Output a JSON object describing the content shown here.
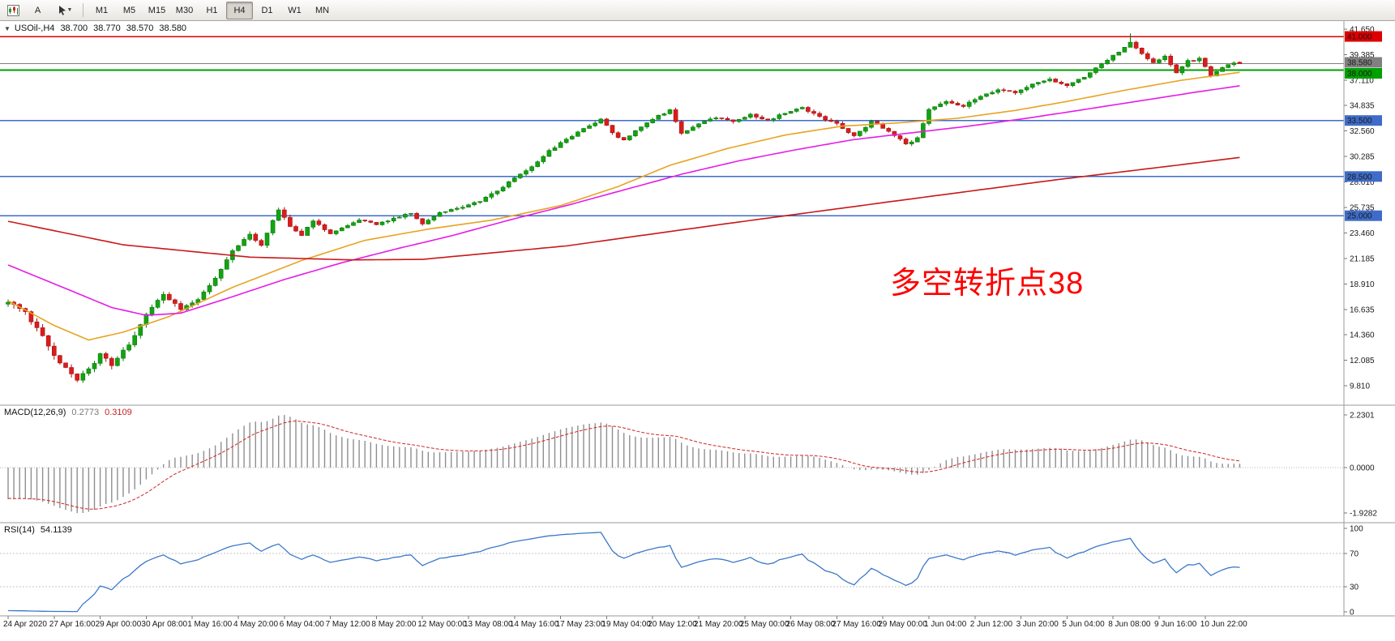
{
  "toolbar": {
    "a_label": "A",
    "timeframes": [
      "M1",
      "M5",
      "M15",
      "M30",
      "H1",
      "H4",
      "D1",
      "W1",
      "MN"
    ],
    "active_timeframe": "H4"
  },
  "chart": {
    "title": {
      "symbol": "USOil-,H4",
      "open": "38.700",
      "high": "38.770",
      "low": "38.570",
      "close": "38.580"
    },
    "annotation": {
      "text": "多空转折点38",
      "color": "#FF0000"
    }
  },
  "macd": {
    "name": "MACD(12,26,9)",
    "value_main": "0.2773",
    "value_signal": "0.3109",
    "scale": [
      "2.2301",
      "0.0000",
      "-1.9282"
    ]
  },
  "rsi": {
    "name": "RSI(14)",
    "value": "54.1139",
    "scale": [
      "100",
      "70",
      "30",
      "0"
    ]
  },
  "chart_data": {
    "type": "candlestick",
    "symbol": "USOil-",
    "period": "H4",
    "bar_count": 215,
    "last_bar_ohlc": [
      38.7,
      38.77,
      38.57,
      38.58
    ],
    "y_axis": {
      "top_price": 42.45,
      "bottom_price": 8.08,
      "ticks": [
        41.65,
        39.385,
        37.11,
        34.835,
        32.56,
        30.285,
        28.01,
        25.735,
        23.46,
        21.185,
        18.91,
        16.635,
        14.36,
        12.085,
        9.81
      ]
    },
    "x_axis": {
      "bars_per_label": 8,
      "labels": [
        "24 Apr 2020",
        "27 Apr 16:00",
        "29 Apr 00:00",
        "30 Apr 08:00",
        "1 May 16:00",
        "4 May 20:00",
        "6 May 04:00",
        "7 May 12:00",
        "8 May 20:00",
        "12 May 00:00",
        "13 May 08:00",
        "14 May 16:00",
        "17 May 23:00",
        "19 May 04:00",
        "20 May 12:00",
        "21 May 20:00",
        "25 May 00:00",
        "26 May 08:00",
        "27 May 16:00",
        "29 May 00:00",
        "1 Jun 04:00",
        "2 Jun 12:00",
        "3 Jun 20:00",
        "5 Jun 04:00",
        "8 Jun 08:00",
        "9 Jun 16:00",
        "10 Jun 22:00"
      ]
    },
    "horizontal_lines": [
      {
        "price": 41.0,
        "label": "41.000",
        "color": "#DD0000",
        "width": 1.5,
        "name": "resistance-line-41"
      },
      {
        "price": 38.58,
        "label": "38.580",
        "color": "#808080",
        "width": 1,
        "name": "bid-price-line"
      },
      {
        "price": 38.0,
        "label": "38.000",
        "color": "#00A000",
        "width": 2,
        "name": "pivot-line-38"
      },
      {
        "price": 33.5,
        "label": "33.500",
        "color": "#3E6CC8",
        "width": 1.5,
        "name": "level-line-33-5"
      },
      {
        "price": 28.5,
        "label": "28.500",
        "color": "#3E6CC8",
        "width": 1.5,
        "name": "level-line-28-5"
      },
      {
        "price": 25.0,
        "label": "25.000",
        "color": "#3E6CC8",
        "width": 1.5,
        "name": "level-line-25"
      }
    ],
    "price_path_anchors": [
      [
        0,
        17.2
      ],
      [
        3,
        16.4
      ],
      [
        6,
        14.2
      ],
      [
        9,
        11.9
      ],
      [
        12,
        10.4
      ],
      [
        14,
        11.2
      ],
      [
        16,
        12.6
      ],
      [
        18,
        11.7
      ],
      [
        21,
        13.5
      ],
      [
        24,
        16.2
      ],
      [
        27,
        18.0
      ],
      [
        30,
        16.7
      ],
      [
        33,
        17.6
      ],
      [
        36,
        19.5
      ],
      [
        39,
        21.8
      ],
      [
        42,
        23.3
      ],
      [
        44,
        22.4
      ],
      [
        47,
        25.6
      ],
      [
        49,
        24.1
      ],
      [
        51,
        23.2
      ],
      [
        53,
        24.6
      ],
      [
        56,
        23.4
      ],
      [
        58,
        23.9
      ],
      [
        61,
        24.6
      ],
      [
        64,
        24.2
      ],
      [
        67,
        24.8
      ],
      [
        70,
        25.2
      ],
      [
        72,
        24.2
      ],
      [
        75,
        25.3
      ],
      [
        79,
        25.8
      ],
      [
        82,
        26.3
      ],
      [
        85,
        27.2
      ],
      [
        88,
        28.4
      ],
      [
        91,
        29.4
      ],
      [
        94,
        30.8
      ],
      [
        97,
        31.8
      ],
      [
        100,
        32.8
      ],
      [
        103,
        33.6
      ],
      [
        105,
        32.4
      ],
      [
        107,
        31.7
      ],
      [
        110,
        33.0
      ],
      [
        113,
        33.9
      ],
      [
        115,
        34.4
      ],
      [
        117,
        32.3
      ],
      [
        120,
        33.2
      ],
      [
        123,
        33.8
      ],
      [
        126,
        33.4
      ],
      [
        129,
        34.0
      ],
      [
        132,
        33.5
      ],
      [
        135,
        34.2
      ],
      [
        138,
        34.6
      ],
      [
        141,
        33.8
      ],
      [
        144,
        33.2
      ],
      [
        147,
        32.1
      ],
      [
        150,
        33.4
      ],
      [
        153,
        32.6
      ],
      [
        156,
        31.4
      ],
      [
        158,
        31.9
      ],
      [
        160,
        34.5
      ],
      [
        163,
        35.2
      ],
      [
        166,
        34.8
      ],
      [
        169,
        35.6
      ],
      [
        172,
        36.3
      ],
      [
        175,
        36.0
      ],
      [
        178,
        36.8
      ],
      [
        181,
        37.2
      ],
      [
        184,
        36.6
      ],
      [
        187,
        37.4
      ],
      [
        190,
        38.6
      ],
      [
        193,
        39.6
      ],
      [
        195,
        40.5
      ],
      [
        197,
        39.4
      ],
      [
        199,
        38.7
      ],
      [
        201,
        39.2
      ],
      [
        203,
        37.7
      ],
      [
        205,
        38.8
      ],
      [
        207,
        39.0
      ],
      [
        209,
        37.5
      ],
      [
        211,
        38.2
      ],
      [
        213,
        38.7
      ],
      [
        214,
        38.58
      ]
    ],
    "moving_averages": [
      {
        "name": "ma-fast",
        "color": "#E8A323",
        "anchors": [
          [
            0,
            17.4
          ],
          [
            8,
            15.2
          ],
          [
            14,
            13.9
          ],
          [
            20,
            14.6
          ],
          [
            28,
            16.0
          ],
          [
            39,
            18.6
          ],
          [
            51,
            21.0
          ],
          [
            62,
            22.8
          ],
          [
            73,
            23.8
          ],
          [
            84,
            24.6
          ],
          [
            96,
            25.9
          ],
          [
            106,
            27.6
          ],
          [
            115,
            29.5
          ],
          [
            125,
            31.0
          ],
          [
            135,
            32.2
          ],
          [
            145,
            33.0
          ],
          [
            155,
            33.3
          ],
          [
            165,
            33.7
          ],
          [
            175,
            34.4
          ],
          [
            184,
            35.2
          ],
          [
            194,
            36.2
          ],
          [
            204,
            37.1
          ],
          [
            214,
            37.8
          ]
        ]
      },
      {
        "name": "ma-mid",
        "color": "#E61CE6",
        "anchors": [
          [
            0,
            20.6
          ],
          [
            10,
            18.5
          ],
          [
            18,
            16.8
          ],
          [
            24,
            16.1
          ],
          [
            30,
            16.3
          ],
          [
            38,
            17.6
          ],
          [
            48,
            19.3
          ],
          [
            58,
            20.8
          ],
          [
            68,
            22.1
          ],
          [
            77,
            23.2
          ],
          [
            87,
            24.6
          ],
          [
            97,
            25.9
          ],
          [
            107,
            27.3
          ],
          [
            117,
            28.7
          ],
          [
            127,
            29.9
          ],
          [
            137,
            30.9
          ],
          [
            147,
            31.8
          ],
          [
            157,
            32.4
          ],
          [
            167,
            33.0
          ],
          [
            177,
            33.7
          ],
          [
            186,
            34.4
          ],
          [
            196,
            35.2
          ],
          [
            206,
            36.0
          ],
          [
            214,
            36.6
          ]
        ]
      },
      {
        "name": "ma-slow",
        "color": "#C81919",
        "anchors": [
          [
            0,
            24.5
          ],
          [
            20,
            22.4
          ],
          [
            42,
            21.3
          ],
          [
            60,
            21.05
          ],
          [
            72,
            21.1
          ],
          [
            97,
            22.3
          ],
          [
            125,
            24.3
          ],
          [
            154,
            26.3
          ],
          [
            182,
            28.2
          ],
          [
            203,
            29.5
          ],
          [
            214,
            30.2
          ]
        ]
      }
    ],
    "candle_colors": {
      "up": "#12A312",
      "up_border": "#0B7A0B",
      "down": "#DB1C1C",
      "down_border": "#A61212"
    },
    "indicators": [
      {
        "name": "MACD",
        "params": [
          12,
          26,
          9
        ],
        "current": [
          0.2773,
          0.3109
        ],
        "scale_max": 2.2301,
        "scale_min": -1.9282,
        "histogram_color": "#8F8F8F",
        "signal_color": "#D02525"
      },
      {
        "name": "RSI",
        "params": [
          14
        ],
        "current": 54.1139,
        "levels": [
          70,
          30
        ],
        "range": [
          0,
          100
        ],
        "color": "#3B78C8"
      }
    ]
  }
}
